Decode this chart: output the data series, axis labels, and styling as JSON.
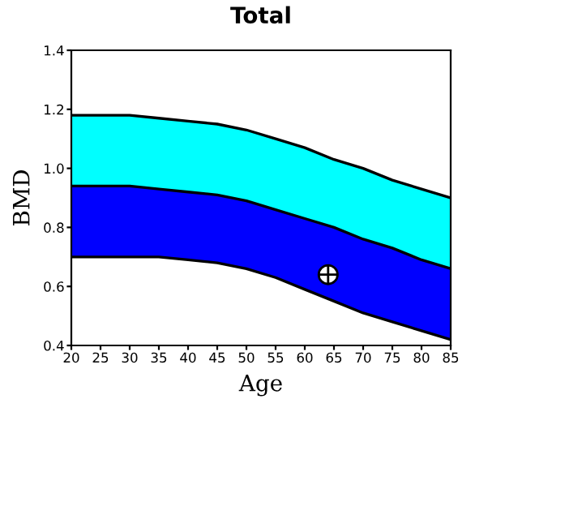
{
  "chart_data": {
    "type": "area",
    "title": "Total",
    "xlabel": "Age",
    "ylabel": "BMD",
    "x": [
      20,
      25,
      30,
      35,
      40,
      45,
      50,
      55,
      60,
      65,
      70,
      75,
      80,
      85
    ],
    "series": [
      {
        "color": "#00ffff",
        "values": [
          1.18,
          1.18,
          1.18,
          1.17,
          1.16,
          1.15,
          1.13,
          1.1,
          1.07,
          1.03,
          1.0,
          0.96,
          0.93,
          0.9
        ]
      },
      {
        "color": "#0000ff",
        "values": [
          0.94,
          0.94,
          0.94,
          0.93,
          0.92,
          0.91,
          0.89,
          0.86,
          0.83,
          0.8,
          0.76,
          0.73,
          0.69,
          0.66
        ]
      },
      {
        "color": "#ffffff",
        "values": [
          0.7,
          0.7,
          0.7,
          0.7,
          0.69,
          0.68,
          0.66,
          0.63,
          0.59,
          0.55,
          0.51,
          0.48,
          0.45,
          0.42
        ]
      },
      {
        "type": "scatter",
        "color": "#ffffff",
        "x": [
          64
        ],
        "values": [
          0.64
        ],
        "marker": "circle"
      }
    ],
    "xlim": [
      20,
      85
    ],
    "xticks": [
      20,
      25,
      30,
      35,
      40,
      45,
      50,
      55,
      60,
      65,
      70,
      75,
      80,
      85
    ],
    "ylim": [
      0.4,
      1.4
    ],
    "yticks": [
      {
        "value": 0.4,
        "label": "0.4"
      },
      {
        "value": 0.6,
        "label": "0.6"
      },
      {
        "value": 0.8,
        "label": "0.8"
      },
      {
        "value": 1.0,
        "label": "1.0"
      },
      {
        "value": 1.2,
        "label": "1.2"
      },
      {
        "value": 1.4,
        "label": "1.4"
      }
    ],
    "grid": false
  }
}
